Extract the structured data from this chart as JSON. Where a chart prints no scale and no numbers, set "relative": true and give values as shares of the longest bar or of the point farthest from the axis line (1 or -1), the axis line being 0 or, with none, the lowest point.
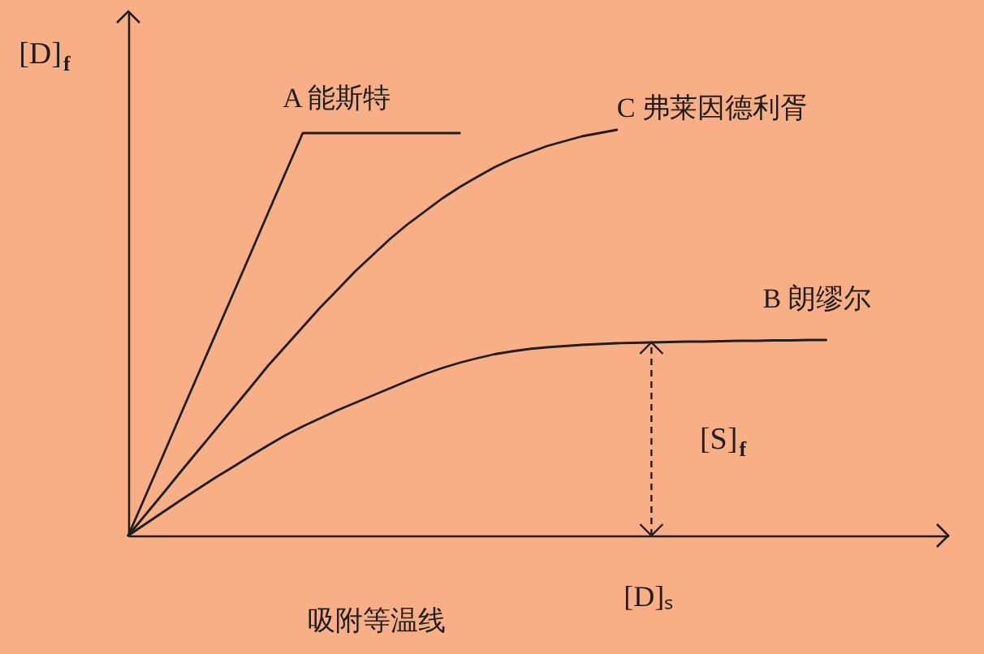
{
  "chart_data": {
    "type": "line",
    "relative": true,
    "xlabel": "[D]ₛ",
    "ylabel": "[D]$_{f}$",
    "annotations": [
      "吸附等温线",
      {
        "text": "[S]$_{f}$",
        "y": 0.476
      }
    ],
    "categories": [
      null,
      null,
      null,
      null,
      null,
      null,
      null,
      null,
      null,
      null,
      null,
      null,
      null,
      null,
      null,
      null,
      null,
      null,
      null,
      null,
      null,
      null,
      null,
      null,
      null,
      null,
      null,
      null,
      null,
      null,
      null,
      null,
      null,
      null,
      null,
      null,
      null,
      null,
      null,
      null,
      null,
      null,
      null,
      null,
      null,
      null,
      null,
      null
    ],
    "series": [
      {
        "name": "A 能斯特",
        "color": "#1e1e1e",
        "values": [
          0,
          0.099,
          0.198,
          0.298,
          0.397,
          0.496,
          0.595,
          0.694,
          0.794,
          0.893,
          0.992,
          0.992,
          0.992,
          0.992,
          0.992,
          0.992,
          0.992,
          0.992,
          0.992,
          0.992,
          null,
          null,
          null,
          null,
          null,
          null,
          null,
          null,
          null,
          null,
          null,
          null,
          null,
          null,
          null,
          null,
          null,
          null,
          null,
          null,
          null,
          null,
          null,
          null,
          null,
          null,
          null,
          null
        ]
      },
      {
        "name": "C 弗莱因德利胥",
        "color": "#1e1e1e",
        "values": [
          0,
          0.052,
          0.104,
          0.157,
          0.209,
          0.261,
          0.313,
          0.365,
          0.418,
          0.466,
          0.514,
          0.562,
          0.606,
          0.651,
          0.691,
          0.731,
          0.767,
          0.799,
          0.831,
          0.859,
          0.884,
          0.908,
          0.928,
          0.944,
          0.96,
          0.972,
          0.984,
          0.992,
          1.0,
          null,
          null,
          null,
          null,
          null,
          null,
          null,
          null,
          null,
          null,
          null,
          null,
          null,
          null,
          null,
          null,
          null,
          null,
          null
        ]
      },
      {
        "name": "B 朗缪尔",
        "color": "#1e1e1e",
        "values": [
          0,
          0.029,
          0.058,
          0.087,
          0.115,
          0.143,
          0.169,
          0.196,
          0.222,
          0.247,
          0.269,
          0.289,
          0.309,
          0.327,
          0.345,
          0.363,
          0.381,
          0.398,
          0.413,
          0.426,
          0.437,
          0.447,
          0.454,
          0.46,
          0.464,
          0.467,
          0.47,
          0.472,
          0.474,
          0.475,
          0.476,
          0.477,
          0.478,
          0.478,
          0.479,
          0.48,
          0.48,
          0.481,
          0.481,
          0.482,
          0.482,
          null,
          null,
          null,
          null,
          null,
          null,
          null
        ]
      }
    ]
  }
}
